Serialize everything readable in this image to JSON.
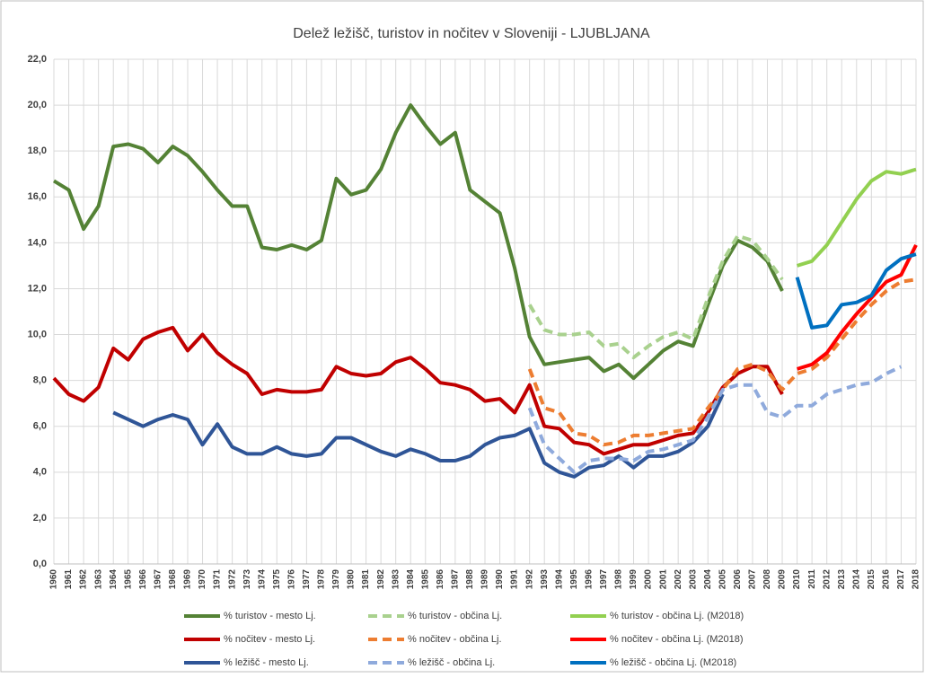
{
  "chart_data": {
    "type": "line",
    "title": "Delež ležišč, turistov in nočitev v Sloveniji - LJUBLJANA",
    "categories": [
      "1960",
      "1961",
      "1962",
      "1963",
      "1964",
      "1965",
      "1966",
      "1967",
      "1968",
      "1969",
      "1970",
      "1971",
      "1972",
      "1973",
      "1974",
      "1975",
      "1976",
      "1977",
      "1978",
      "1979",
      "1980",
      "1981",
      "1982",
      "1983",
      "1984",
      "1985",
      "1986",
      "1987",
      "1988",
      "1989",
      "1990",
      "1991",
      "1992",
      "1993",
      "1994",
      "1995",
      "1996",
      "1997",
      "1998",
      "1999",
      "2000",
      "2001",
      "2002",
      "2003",
      "2004",
      "2005",
      "2006",
      "2007",
      "2008",
      "2009",
      "2010",
      "2011",
      "2012",
      "2013",
      "2014",
      "2015",
      "2016",
      "2017",
      "2018"
    ],
    "ylim": [
      0,
      22
    ],
    "yticks": [
      {
        "value": 0,
        "label": "0,0"
      },
      {
        "value": 2,
        "label": "2,0"
      },
      {
        "value": 4,
        "label": "4,0"
      },
      {
        "value": 6,
        "label": "6,0"
      },
      {
        "value": 8,
        "label": "8,0"
      },
      {
        "value": 10,
        "label": "10,0"
      },
      {
        "value": 12,
        "label": "12,0"
      },
      {
        "value": 14,
        "label": "14,0"
      },
      {
        "value": 16,
        "label": "16,0"
      },
      {
        "value": 18,
        "label": "18,0"
      },
      {
        "value": 20,
        "label": "20,0"
      },
      {
        "value": 22,
        "label": "22,0"
      }
    ],
    "grid": true,
    "series": [
      {
        "name": "% turistov - mesto Lj.",
        "color": "#548235",
        "dashed": false,
        "values": [
          16.7,
          16.3,
          14.6,
          15.6,
          18.2,
          18.3,
          18.1,
          17.5,
          18.2,
          17.8,
          17.1,
          16.3,
          15.6,
          15.6,
          13.8,
          13.7,
          13.9,
          13.7,
          14.1,
          16.8,
          16.1,
          16.3,
          17.2,
          18.8,
          20.0,
          19.1,
          18.3,
          18.8,
          16.3,
          15.8,
          15.3,
          12.9,
          9.9,
          8.7,
          8.8,
          8.9,
          9.0,
          8.4,
          8.7,
          8.1,
          8.7,
          9.3,
          9.7,
          9.5,
          11.3,
          13.0,
          14.1,
          13.8,
          13.2,
          11.9,
          null,
          null,
          null,
          null,
          null,
          null,
          null,
          null,
          null
        ]
      },
      {
        "name": "% turistov - občina Lj.",
        "color": "#a9d18e",
        "dashed": true,
        "values": [
          null,
          null,
          null,
          null,
          null,
          null,
          null,
          null,
          null,
          null,
          null,
          null,
          null,
          null,
          null,
          null,
          null,
          null,
          null,
          null,
          null,
          null,
          null,
          null,
          null,
          null,
          null,
          null,
          null,
          null,
          null,
          null,
          11.3,
          10.2,
          10.0,
          10.0,
          10.1,
          9.5,
          9.6,
          9.0,
          9.5,
          9.9,
          10.1,
          9.8,
          11.6,
          13.2,
          14.3,
          14.1,
          13.3,
          12.4,
          null,
          null,
          null,
          null,
          null,
          null,
          null,
          null,
          null
        ]
      },
      {
        "name": "% turistov - občina Lj. (M2018)",
        "color": "#92d050",
        "dashed": false,
        "values": [
          null,
          null,
          null,
          null,
          null,
          null,
          null,
          null,
          null,
          null,
          null,
          null,
          null,
          null,
          null,
          null,
          null,
          null,
          null,
          null,
          null,
          null,
          null,
          null,
          null,
          null,
          null,
          null,
          null,
          null,
          null,
          null,
          null,
          null,
          null,
          null,
          null,
          null,
          null,
          null,
          null,
          null,
          null,
          null,
          null,
          null,
          null,
          null,
          null,
          null,
          13.0,
          13.2,
          13.9,
          14.9,
          15.9,
          16.7,
          17.1,
          17.0,
          17.2
        ]
      },
      {
        "name": "% nočitev - mesto Lj.",
        "color": "#c00000",
        "dashed": false,
        "values": [
          8.1,
          7.4,
          7.1,
          7.7,
          9.4,
          8.9,
          9.8,
          10.1,
          10.3,
          9.3,
          10.0,
          9.2,
          8.7,
          8.3,
          7.4,
          7.6,
          7.5,
          7.5,
          7.6,
          8.6,
          8.3,
          8.2,
          8.3,
          8.8,
          9.0,
          8.5,
          7.9,
          7.8,
          7.6,
          7.1,
          7.2,
          6.6,
          7.8,
          6.0,
          5.9,
          5.3,
          5.2,
          4.8,
          5.0,
          5.2,
          5.2,
          5.4,
          5.6,
          5.7,
          6.6,
          7.7,
          8.3,
          8.6,
          8.6,
          7.4,
          null,
          null,
          null,
          null,
          null,
          null,
          null,
          null,
          null
        ]
      },
      {
        "name": "% nočitev - občina Lj.",
        "color": "#ed7d31",
        "dashed": true,
        "values": [
          null,
          null,
          null,
          null,
          null,
          null,
          null,
          null,
          null,
          null,
          null,
          null,
          null,
          null,
          null,
          null,
          null,
          null,
          null,
          null,
          null,
          null,
          null,
          null,
          null,
          null,
          null,
          null,
          null,
          null,
          null,
          null,
          8.5,
          6.8,
          6.6,
          5.7,
          5.6,
          5.2,
          5.3,
          5.6,
          5.6,
          5.7,
          5.8,
          5.9,
          6.8,
          7.6,
          8.5,
          8.7,
          8.4,
          7.6,
          8.3,
          8.5,
          9.0,
          9.8,
          10.6,
          11.3,
          11.9,
          12.3,
          12.4
        ]
      },
      {
        "name": "% nočitev - občina Lj. (M2018)",
        "color": "#ff0000",
        "dashed": false,
        "values": [
          null,
          null,
          null,
          null,
          null,
          null,
          null,
          null,
          null,
          null,
          null,
          null,
          null,
          null,
          null,
          null,
          null,
          null,
          null,
          null,
          null,
          null,
          null,
          null,
          null,
          null,
          null,
          null,
          null,
          null,
          null,
          null,
          null,
          null,
          null,
          null,
          null,
          null,
          null,
          null,
          null,
          null,
          null,
          null,
          null,
          null,
          null,
          null,
          null,
          null,
          8.5,
          8.7,
          9.2,
          10.1,
          10.9,
          11.6,
          12.3,
          12.6,
          13.9
        ]
      },
      {
        "name": "% ležišč - mesto Lj.",
        "color": "#2f5597",
        "dashed": false,
        "values": [
          null,
          null,
          null,
          null,
          6.6,
          6.3,
          6.0,
          6.3,
          6.5,
          6.3,
          5.2,
          6.1,
          5.1,
          4.8,
          4.8,
          5.1,
          4.8,
          4.7,
          4.8,
          5.5,
          5.5,
          5.2,
          4.9,
          4.7,
          5.0,
          4.8,
          4.5,
          4.5,
          4.7,
          5.2,
          5.5,
          5.6,
          5.9,
          4.4,
          4.0,
          3.8,
          4.2,
          4.3,
          4.7,
          4.2,
          4.7,
          4.7,
          4.9,
          5.3,
          6.0,
          7.4,
          null,
          null,
          null,
          null,
          null,
          null,
          null,
          null,
          null,
          null,
          null,
          null,
          null
        ]
      },
      {
        "name": "% ležišč - občina Lj.",
        "color": "#8faadc",
        "dashed": true,
        "values": [
          null,
          null,
          null,
          null,
          null,
          null,
          null,
          null,
          null,
          null,
          null,
          null,
          null,
          null,
          null,
          null,
          null,
          null,
          null,
          null,
          null,
          null,
          null,
          null,
          null,
          null,
          null,
          null,
          null,
          null,
          null,
          null,
          6.8,
          5.2,
          4.6,
          4.0,
          4.5,
          4.6,
          4.6,
          4.5,
          4.9,
          5.0,
          5.2,
          5.4,
          6.4,
          7.6,
          7.8,
          7.8,
          6.6,
          6.4,
          6.9,
          6.9,
          7.4,
          7.6,
          7.8,
          7.9,
          8.3,
          8.6,
          null
        ]
      },
      {
        "name": "% ležišč - občina Lj. (M2018)",
        "color": "#0070c0",
        "dashed": false,
        "values": [
          null,
          null,
          null,
          null,
          null,
          null,
          null,
          null,
          null,
          null,
          null,
          null,
          null,
          null,
          null,
          null,
          null,
          null,
          null,
          null,
          null,
          null,
          null,
          null,
          null,
          null,
          null,
          null,
          null,
          null,
          null,
          null,
          null,
          null,
          null,
          null,
          null,
          null,
          null,
          null,
          null,
          null,
          null,
          null,
          null,
          null,
          null,
          null,
          null,
          null,
          12.5,
          10.3,
          10.4,
          11.3,
          11.4,
          11.7,
          12.8,
          13.3,
          13.5
        ]
      }
    ]
  }
}
